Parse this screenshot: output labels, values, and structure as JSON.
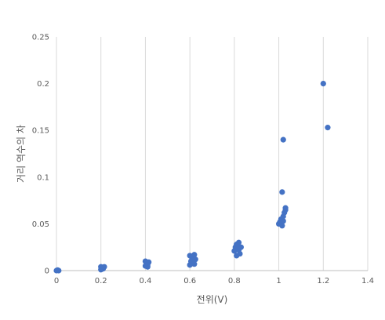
{
  "chart_data": {
    "type": "scatter",
    "title": "",
    "xlabel": "전위(V)",
    "ylabel": "거리 역수의 차",
    "xlim": [
      0,
      1.4
    ],
    "ylim": [
      0,
      0.25
    ],
    "x_ticks": [
      "0",
      "0.2",
      "0.4",
      "0.6",
      "0.8",
      "1",
      "1.2",
      "1.4"
    ],
    "y_ticks": [
      "0",
      "0.05",
      "0.1",
      "0.15",
      "0.2",
      "0.25"
    ],
    "grid": "vertical",
    "legend": "none",
    "marker_color": "#4472C4",
    "series": [
      {
        "points": [
          [
            0.0,
            0.0
          ],
          [
            0.005,
            0.0005
          ],
          [
            0.01,
            0.0
          ],
          [
            0.2,
            0.001
          ],
          [
            0.205,
            0.003
          ],
          [
            0.21,
            0.002
          ],
          [
            0.2,
            0.004
          ],
          [
            0.215,
            0.004
          ],
          [
            0.4,
            0.005
          ],
          [
            0.405,
            0.008
          ],
          [
            0.41,
            0.006
          ],
          [
            0.4,
            0.01
          ],
          [
            0.415,
            0.009
          ],
          [
            0.41,
            0.004
          ],
          [
            0.6,
            0.006
          ],
          [
            0.605,
            0.01
          ],
          [
            0.61,
            0.013
          ],
          [
            0.615,
            0.015
          ],
          [
            0.62,
            0.017
          ],
          [
            0.625,
            0.012
          ],
          [
            0.6,
            0.016
          ],
          [
            0.62,
            0.007
          ],
          [
            0.8,
            0.021
          ],
          [
            0.805,
            0.025
          ],
          [
            0.81,
            0.028
          ],
          [
            0.815,
            0.027
          ],
          [
            0.82,
            0.03
          ],
          [
            0.825,
            0.018
          ],
          [
            0.82,
            0.022
          ],
          [
            0.83,
            0.025
          ],
          [
            0.81,
            0.016
          ],
          [
            1.0,
            0.05
          ],
          [
            1.005,
            0.052
          ],
          [
            1.01,
            0.055
          ],
          [
            1.015,
            0.048
          ],
          [
            1.02,
            0.058
          ],
          [
            1.025,
            0.062
          ],
          [
            1.03,
            0.065
          ],
          [
            1.03,
            0.067
          ],
          [
            1.02,
            0.053
          ],
          [
            1.015,
            0.084
          ],
          [
            1.02,
            0.14
          ],
          [
            1.2,
            0.2
          ],
          [
            1.22,
            0.153
          ]
        ]
      }
    ]
  }
}
